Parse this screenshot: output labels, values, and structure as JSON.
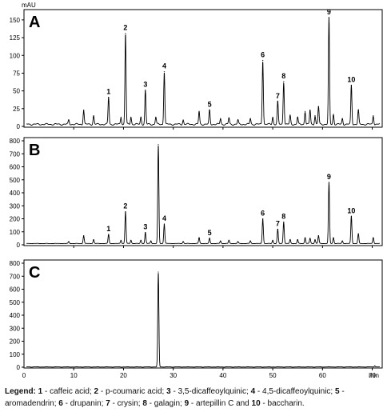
{
  "chart_data": [
    {
      "type": "line",
      "panel_label": "A",
      "ylabel": "mAU",
      "ylim": [
        0,
        160
      ],
      "yticks": [
        0,
        25,
        50,
        75,
        100,
        125,
        150
      ],
      "xlim": [
        0,
        72
      ],
      "grid": false,
      "baseline": 3,
      "peaks": [
        {
          "rt": 9.0,
          "height": 6
        },
        {
          "rt": 12.0,
          "height": 20
        },
        {
          "rt": 14.0,
          "height": 12
        },
        {
          "rt": 17.0,
          "height": 38,
          "label": "1"
        },
        {
          "rt": 19.5,
          "height": 10
        },
        {
          "rt": 20.4,
          "height": 128,
          "label": "2"
        },
        {
          "rt": 21.5,
          "height": 10
        },
        {
          "rt": 23.5,
          "height": 10
        },
        {
          "rt": 24.4,
          "height": 48,
          "label": "3"
        },
        {
          "rt": 26.5,
          "height": 10
        },
        {
          "rt": 28.2,
          "height": 74,
          "label": "4"
        },
        {
          "rt": 32.0,
          "height": 6
        },
        {
          "rt": 35.2,
          "height": 18
        },
        {
          "rt": 37.3,
          "height": 20,
          "label": "5"
        },
        {
          "rt": 39.5,
          "height": 8
        },
        {
          "rt": 41.2,
          "height": 9
        },
        {
          "rt": 43.0,
          "height": 6
        },
        {
          "rt": 45.5,
          "height": 8
        },
        {
          "rt": 48.0,
          "height": 90,
          "label": "6"
        },
        {
          "rt": 50.0,
          "height": 10
        },
        {
          "rt": 51.0,
          "height": 32,
          "label": "7"
        },
        {
          "rt": 52.2,
          "height": 60,
          "label": "8"
        },
        {
          "rt": 53.5,
          "height": 12
        },
        {
          "rt": 55.0,
          "height": 10
        },
        {
          "rt": 56.5,
          "height": 18
        },
        {
          "rt": 57.5,
          "height": 20
        },
        {
          "rt": 58.5,
          "height": 12
        },
        {
          "rt": 59.2,
          "height": 25
        },
        {
          "rt": 61.3,
          "height": 150,
          "label": "9"
        },
        {
          "rt": 62.2,
          "height": 14
        },
        {
          "rt": 64.0,
          "height": 8
        },
        {
          "rt": 65.8,
          "height": 55,
          "label": "10"
        },
        {
          "rt": 67.2,
          "height": 20
        },
        {
          "rt": 70.2,
          "height": 12
        }
      ]
    },
    {
      "type": "line",
      "panel_label": "B",
      "ylim": [
        0,
        800
      ],
      "yticks": [
        0,
        100,
        200,
        300,
        400,
        500,
        600,
        700,
        800
      ],
      "xlim": [
        0,
        72
      ],
      "grid": false,
      "baseline": 10,
      "peaks": [
        {
          "rt": 9.0,
          "height": 15
        },
        {
          "rt": 12.0,
          "height": 60
        },
        {
          "rt": 14.0,
          "height": 30
        },
        {
          "rt": 17.0,
          "height": 70,
          "label": "1"
        },
        {
          "rt": 19.5,
          "height": 25
        },
        {
          "rt": 20.4,
          "height": 245,
          "label": "2"
        },
        {
          "rt": 21.5,
          "height": 25
        },
        {
          "rt": 23.5,
          "height": 25
        },
        {
          "rt": 24.4,
          "height": 85,
          "label": "3"
        },
        {
          "rt": 25.5,
          "height": 20
        },
        {
          "rt": 27.0,
          "height": 760
        },
        {
          "rt": 28.2,
          "height": 150,
          "label": "4"
        },
        {
          "rt": 32.0,
          "height": 15
        },
        {
          "rt": 35.2,
          "height": 45
        },
        {
          "rt": 37.3,
          "height": 40,
          "label": "5"
        },
        {
          "rt": 39.5,
          "height": 20
        },
        {
          "rt": 41.2,
          "height": 25
        },
        {
          "rt": 43.0,
          "height": 15
        },
        {
          "rt": 45.5,
          "height": 20
        },
        {
          "rt": 48.0,
          "height": 190,
          "label": "6"
        },
        {
          "rt": 50.0,
          "height": 25
        },
        {
          "rt": 51.0,
          "height": 110,
          "label": "7"
        },
        {
          "rt": 52.2,
          "height": 165,
          "label": "8"
        },
        {
          "rt": 53.5,
          "height": 30
        },
        {
          "rt": 55.0,
          "height": 30
        },
        {
          "rt": 56.5,
          "height": 45
        },
        {
          "rt": 57.5,
          "height": 40
        },
        {
          "rt": 58.5,
          "height": 30
        },
        {
          "rt": 59.2,
          "height": 60
        },
        {
          "rt": 61.3,
          "height": 470,
          "label": "9"
        },
        {
          "rt": 62.2,
          "height": 45
        },
        {
          "rt": 64.0,
          "height": 20
        },
        {
          "rt": 65.8,
          "height": 210,
          "label": "10"
        },
        {
          "rt": 67.2,
          "height": 75
        },
        {
          "rt": 70.2,
          "height": 45
        }
      ]
    },
    {
      "type": "line",
      "panel_label": "C",
      "ylim": [
        0,
        800
      ],
      "yticks": [
        0,
        100,
        200,
        300,
        400,
        500,
        600,
        700,
        800
      ],
      "xlim": [
        0,
        72
      ],
      "xticks": [
        0,
        10,
        20,
        30,
        40,
        50,
        60,
        70
      ],
      "xunit": "min",
      "grid": false,
      "baseline": 2,
      "peaks": [
        {
          "rt": 27.0,
          "height": 730
        },
        {
          "rt": 70.5,
          "height": 8
        }
      ]
    }
  ],
  "legend": {
    "title": "Legend:",
    "entries": [
      {
        "key": "1",
        "sep": " - ",
        "text": "caffeic acid;"
      },
      {
        "key": "2",
        "sep": " - ",
        "text": "p-coumaric acid;"
      },
      {
        "key": "3",
        "sep": " - ",
        "text": "3,5-dicaffeoylquinic;"
      },
      {
        "key": "4",
        "sep": " - ",
        "text": "4,5-dicaffeoylquinic;"
      },
      {
        "key": "5",
        "sep": " - ",
        "text": "aromadendrin;"
      },
      {
        "key": "6",
        "sep": " - ",
        "text": "drupanin;"
      },
      {
        "key": "7",
        "sep": " - ",
        "text": "crysin;"
      },
      {
        "key": "8",
        "sep": " - ",
        "text": "galagin;"
      },
      {
        "key": "9",
        "sep": " - ",
        "text": "artepillin C and"
      },
      {
        "key": "10",
        "sep": " - ",
        "text": "baccharin."
      }
    ]
  }
}
